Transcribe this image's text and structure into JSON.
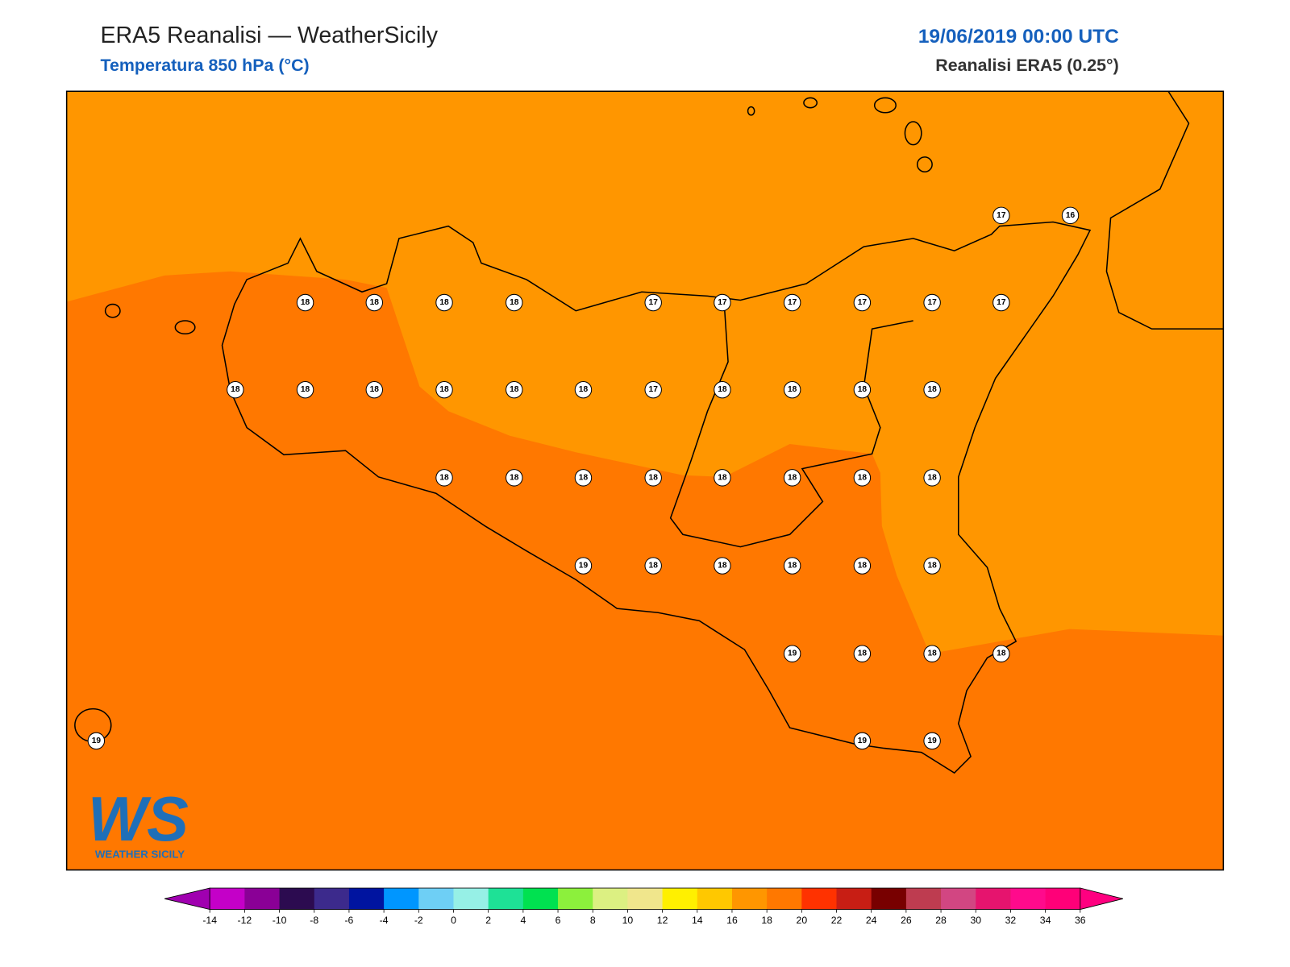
{
  "header": {
    "title": "ERA5 Reanalisi — WeatherSicily",
    "subtitle": "Temperatura 850 hPa (°C)",
    "date": "19/06/2019 00:00 UTC",
    "source": "Reanalisi ERA5 (0.25°)"
  },
  "map": {
    "values": [
      17,
      16,
      18,
      18,
      18,
      18,
      17,
      17,
      17,
      17,
      17,
      17,
      18,
      18,
      18,
      18,
      18,
      18,
      17,
      18,
      18,
      18,
      18,
      18,
      18,
      18,
      18,
      18,
      18,
      18,
      18,
      19,
      18,
      18,
      18,
      18,
      18,
      19,
      18,
      18,
      18,
      19,
      19,
      19
    ]
  },
  "logo": {
    "text": "WS",
    "caption": "WEATHER SICILY"
  },
  "colorbar": {
    "ticks": [
      -14,
      -12,
      -10,
      -8,
      -6,
      -4,
      -2,
      0,
      2,
      4,
      6,
      8,
      10,
      12,
      14,
      16,
      18,
      20,
      22,
      24,
      26,
      28,
      30,
      32,
      34,
      36
    ],
    "colors": [
      "#c400c8",
      "#8a0096",
      "#2c0b50",
      "#3c2a8c",
      "#0014a0",
      "#0096ff",
      "#6ecff5",
      "#96f0e6",
      "#1ee196",
      "#00e150",
      "#8cf03c",
      "#dcf082",
      "#f0e68c",
      "#fff000",
      "#ffc800",
      "#ff9600",
      "#ff7800",
      "#ff3200",
      "#c81e14",
      "#780000",
      "#be3c50",
      "#d24682",
      "#e6146e",
      "#ff0a8c",
      "#ff0078"
    ],
    "under": "#a000b0",
    "over": "#ff0080"
  }
}
